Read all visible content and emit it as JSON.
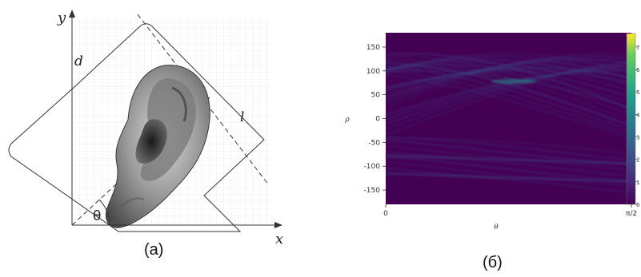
{
  "panel_a": {
    "caption": "(a)",
    "axis_x_label": "x",
    "axis_y_label": "y",
    "label_d": "d",
    "label_l": "l",
    "label_theta": "θ"
  },
  "panel_b": {
    "caption": "(б)",
    "chart_data": {
      "type": "heatmap",
      "xlabel": "θ",
      "ylabel": "ρ",
      "x_tick_labels": [
        "0",
        "π/2"
      ],
      "y_ticks": [
        150,
        100,
        50,
        0,
        -50,
        -100,
        -150
      ],
      "ylim": [
        -180,
        180
      ],
      "colorbar": {
        "ticks": [
          0,
          1,
          2,
          3,
          4,
          5,
          6,
          7
        ],
        "range": [
          0,
          7.6
        ],
        "colormap": "viridis"
      },
      "background_color": "#440154"
    }
  }
}
